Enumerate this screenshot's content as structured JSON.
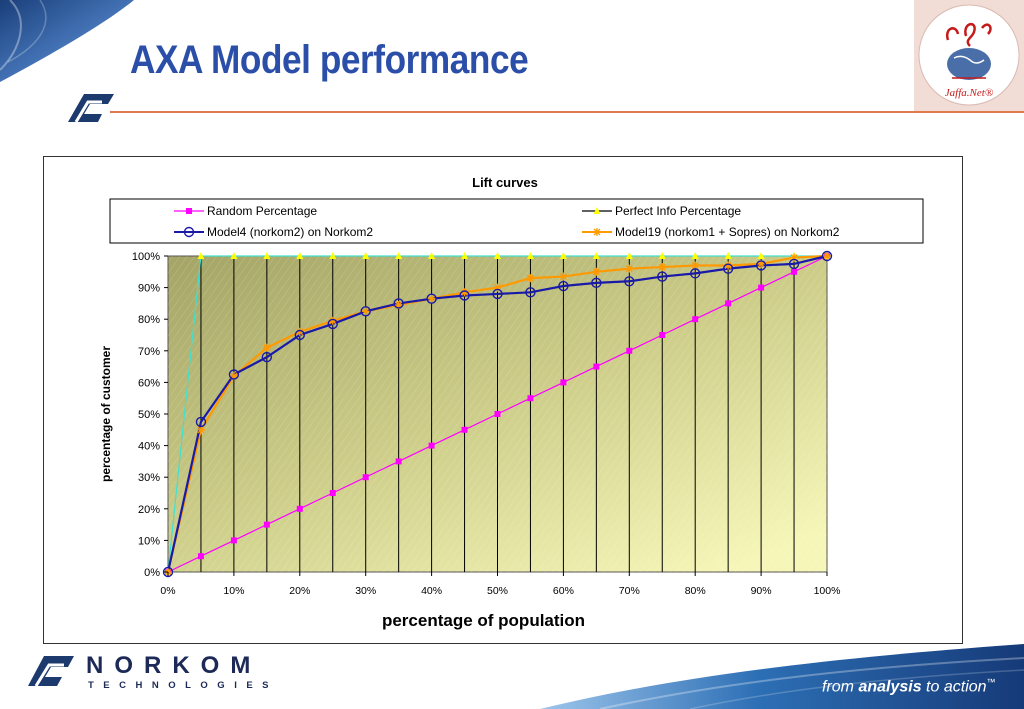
{
  "slide": {
    "title": "AXA Model performance",
    "brand_name": "NORKOM",
    "brand_sub": "TECHNOLOGIES",
    "tagline_pre": "from ",
    "tagline_bold": "analysis",
    "tagline_post": " to action",
    "tagline_tm": "™",
    "jaffa_logo_text": "Jaffa.Net®",
    "colors": {
      "title": "#2b4fa8",
      "accent_rule": "#e07a4a",
      "brand": "#1d2a57"
    }
  },
  "chart_data": {
    "type": "line",
    "title": "Lift curves",
    "xlabel": "percentage of population",
    "ylabel": "percentage of customer",
    "x_ticks": [
      "0%",
      "10%",
      "20%",
      "30%",
      "40%",
      "50%",
      "60%",
      "70%",
      "80%",
      "90%",
      "100%"
    ],
    "y_ticks": [
      "0%",
      "10%",
      "20%",
      "30%",
      "40%",
      "50%",
      "60%",
      "70%",
      "80%",
      "90%",
      "100%"
    ],
    "xlim": [
      0,
      100
    ],
    "ylim": [
      0,
      100
    ],
    "grid": "vertical",
    "plot_background": "olive-to-yellow gradient with diagonal hatching",
    "legend_position": "top",
    "series": [
      {
        "name": "Random Percentage",
        "color": "#ff00ff",
        "marker": "square",
        "x": [
          0,
          5,
          10,
          15,
          20,
          25,
          30,
          35,
          40,
          45,
          50,
          55,
          60,
          65,
          70,
          75,
          80,
          85,
          90,
          95,
          100
        ],
        "y": [
          0,
          5,
          10,
          15,
          20,
          25,
          30,
          35,
          40,
          45,
          50,
          55,
          60,
          65,
          70,
          75,
          80,
          85,
          90,
          95,
          100
        ]
      },
      {
        "name": "Perfect Info Percentage",
        "color": "#ffff00",
        "line_color": "#40e0d0",
        "marker": "triangle",
        "x": [
          0,
          5,
          10,
          15,
          20,
          25,
          30,
          35,
          40,
          45,
          50,
          55,
          60,
          65,
          70,
          75,
          80,
          85,
          90,
          95,
          100
        ],
        "y": [
          0,
          100,
          100,
          100,
          100,
          100,
          100,
          100,
          100,
          100,
          100,
          100,
          100,
          100,
          100,
          100,
          100,
          100,
          100,
          100,
          100
        ]
      },
      {
        "name": "Model4 (norkom2) on Norkom2",
        "color": "#1a1aa8",
        "marker": "circle",
        "x": [
          0,
          5,
          10,
          15,
          20,
          25,
          30,
          35,
          40,
          45,
          50,
          55,
          60,
          65,
          70,
          75,
          80,
          85,
          90,
          95,
          100
        ],
        "y": [
          0,
          47.5,
          62.5,
          68,
          75,
          78.5,
          82.5,
          85,
          86.5,
          87.5,
          88,
          88.5,
          90.5,
          91.5,
          92,
          93.5,
          94.5,
          96,
          97,
          97.5,
          100
        ]
      },
      {
        "name": "Model19 (norkom1 + Sopres) on Norkom2",
        "color": "#ff9900",
        "marker": "star",
        "x": [
          0,
          5,
          10,
          15,
          20,
          25,
          30,
          35,
          40,
          45,
          50,
          55,
          60,
          65,
          70,
          75,
          80,
          85,
          90,
          95,
          100
        ],
        "y": [
          0,
          45,
          62,
          71,
          76,
          79.5,
          82.5,
          84.5,
          86.5,
          88.5,
          90,
          93,
          93.5,
          95,
          96,
          96.5,
          97,
          97,
          97.5,
          99.5,
          100
        ]
      }
    ]
  }
}
